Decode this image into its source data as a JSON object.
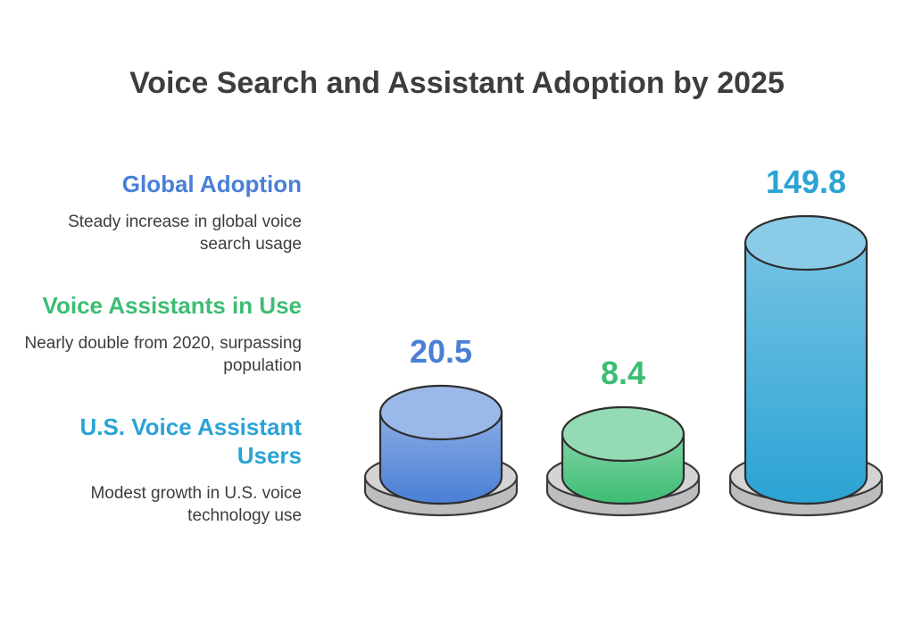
{
  "chart_data": {
    "type": "bar",
    "title": "Voice Search and Assistant Adoption by 2025",
    "categories": [
      "Global Adoption",
      "Voice Assistants in Use",
      "U.S. Voice Assistant Users"
    ],
    "descriptions": [
      "Steady increase in global voice search usage",
      "Nearly double from 2020, surpassing population",
      "Modest growth in U.S. voice technology use"
    ],
    "values": [
      20.5,
      8.4,
      149.8
    ],
    "value_labels": [
      "20.5",
      "8.4",
      "149.8"
    ],
    "colors": [
      "#4a7fd6",
      "#3dbd74",
      "#2ba3d4"
    ],
    "grid": false,
    "legend": "left"
  }
}
